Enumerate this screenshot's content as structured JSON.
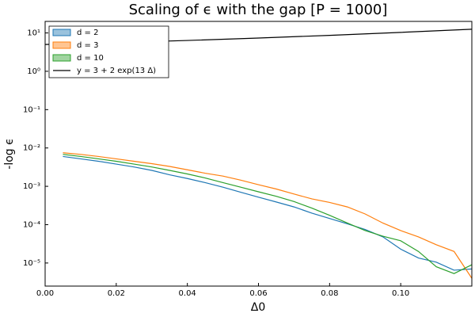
{
  "chart_data": {
    "type": "line",
    "title": "Scaling of ϵ with the gap [P = 1000]",
    "xlabel": "Δ0",
    "ylabel": "-log ϵ",
    "xlim": [
      0,
      0.12
    ],
    "xticks": [
      {
        "value": 0,
        "label": "0.00"
      },
      {
        "value": 0.02,
        "label": "0.02"
      },
      {
        "value": 0.04,
        "label": "0.04"
      },
      {
        "value": 0.06,
        "label": "0.06"
      },
      {
        "value": 0.08,
        "label": "0.08"
      },
      {
        "value": 0.1,
        "label": "0.10"
      }
    ],
    "ylim": [
      2.5e-06,
      20
    ],
    "ylog": true,
    "yticks": [
      {
        "value": 1e-05,
        "label": "10⁻⁵"
      },
      {
        "value": 0.0001,
        "label": "10⁻⁴"
      },
      {
        "value": 0.001,
        "label": "10⁻³"
      },
      {
        "value": 0.01,
        "label": "10⁻²"
      },
      {
        "value": 0.1,
        "label": "10⁻¹"
      },
      {
        "value": 1,
        "label": "10⁰"
      },
      {
        "value": 10,
        "label": "10¹"
      }
    ],
    "legend": "upper-left",
    "series": [
      {
        "name": "d = 2",
        "color": "#1f77b4",
        "legend_patch": true,
        "x": [
          0.005,
          0.01,
          0.015,
          0.02,
          0.025,
          0.03,
          0.035,
          0.04,
          0.045,
          0.05,
          0.055,
          0.06,
          0.065,
          0.07,
          0.075,
          0.08,
          0.085,
          0.09,
          0.095,
          0.1,
          0.105,
          0.11,
          0.115,
          0.12
        ],
        "values": [
          0.006,
          0.0052,
          0.0045,
          0.0038,
          0.0032,
          0.0026,
          0.002,
          0.0016,
          0.00125,
          0.00095,
          0.0007,
          0.00052,
          0.00039,
          0.00029,
          0.0002,
          0.000145,
          0.000105,
          7.5e-05,
          4.8e-05,
          2.3e-05,
          1.35e-05,
          1.05e-05,
          6.5e-06,
          7e-06
        ]
      },
      {
        "name": "d = 3",
        "color": "#ff7f0e",
        "legend_patch": true,
        "x": [
          0.005,
          0.01,
          0.015,
          0.02,
          0.025,
          0.03,
          0.035,
          0.04,
          0.045,
          0.05,
          0.055,
          0.06,
          0.065,
          0.07,
          0.075,
          0.08,
          0.085,
          0.09,
          0.095,
          0.1,
          0.105,
          0.11,
          0.115,
          0.12
        ],
        "values": [
          0.0075,
          0.0068,
          0.006,
          0.0052,
          0.0045,
          0.0039,
          0.0033,
          0.0027,
          0.0022,
          0.00185,
          0.00145,
          0.0011,
          0.00085,
          0.00063,
          0.00047,
          0.00038,
          0.00029,
          0.00019,
          0.00011,
          7e-05,
          4.8e-05,
          3e-05,
          2e-05,
          4e-06
        ]
      },
      {
        "name": "d = 10",
        "color": "#2ca02c",
        "legend_patch": true,
        "x": [
          0.005,
          0.01,
          0.015,
          0.02,
          0.025,
          0.03,
          0.035,
          0.04,
          0.045,
          0.05,
          0.055,
          0.06,
          0.065,
          0.07,
          0.075,
          0.08,
          0.085,
          0.09,
          0.095,
          0.1,
          0.105,
          0.11,
          0.115,
          0.12
        ],
        "values": [
          0.0068,
          0.006,
          0.0052,
          0.0045,
          0.0038,
          0.0032,
          0.0026,
          0.0021,
          0.00165,
          0.00125,
          0.00095,
          0.00072,
          0.00055,
          0.0004,
          0.00027,
          0.000175,
          0.00011,
          7e-05,
          5e-05,
          3.8e-05,
          2e-05,
          8e-06,
          5.3e-06,
          9e-06
        ]
      },
      {
        "name": "y = 3 + 2 exp(13 Δ)",
        "color": "#000000",
        "legend_patch": false,
        "x": [
          0,
          0.02,
          0.04,
          0.06,
          0.08,
          0.1,
          0.12
        ],
        "values": [
          5,
          5.59,
          6.36,
          7.36,
          8.66,
          10.34,
          12.52
        ]
      }
    ]
  }
}
